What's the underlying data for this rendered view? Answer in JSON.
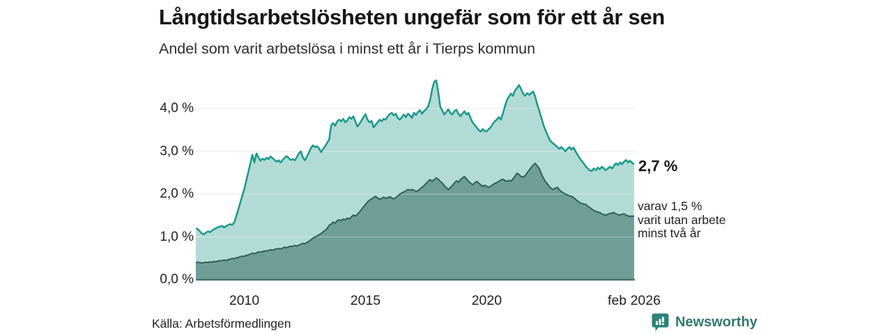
{
  "header": {
    "title": "Långtidsarbetslösheten ungefär som för ett år sen",
    "subtitle": "Andel som varit arbetslösa i minst ett år i Tierps kommun"
  },
  "annotations": {
    "end_value_label": "2,7 %",
    "secondary_lines": [
      "varav 1,5 %",
      "varit utan arbete",
      "minst två år"
    ]
  },
  "source": "Källa: Arbetsförmedlingen",
  "branding": {
    "name": "Newsworthy",
    "icon": "newsworthy-bars-icon",
    "color": "#31796f"
  },
  "colors": {
    "total_line": "#18998b",
    "total_fill": "#b3dbd5",
    "two_year_line": "#2e5f57",
    "two_year_fill": "#6f9e97",
    "gridline": "#e4e4e4",
    "axis_line": "#47776f",
    "text": "#222222"
  },
  "chart_data": {
    "type": "area",
    "title": "Långtidsarbetslösheten ungefär som för ett år sen",
    "subtitle": "Andel som varit arbetslösa i minst ett år i Tierps kommun",
    "x_start": "2008-01",
    "x_end": "2026-02",
    "frequency": "monthly",
    "ylim": [
      0,
      4.78
    ],
    "grid": true,
    "legend_position": "none",
    "y_ticks": [
      {
        "value": 0,
        "label": "0,0 %"
      },
      {
        "value": 1,
        "label": "1,0 %"
      },
      {
        "value": 2,
        "label": "2,0 %"
      },
      {
        "value": 3,
        "label": "3,0 %"
      },
      {
        "value": 4,
        "label": "4,0 %"
      }
    ],
    "x_ticks": [
      {
        "label": "2010",
        "month_index": 24
      },
      {
        "label": "2015",
        "month_index": 84
      },
      {
        "label": "2020",
        "month_index": 144
      },
      {
        "label": "feb 2026",
        "month_index": 217
      }
    ],
    "series": [
      {
        "name": "Andel som varit arbetslösa i minst ett år",
        "end_label": "2,7 %",
        "color": "#18998b",
        "fill": "#b3dbd5",
        "values": [
          1.2,
          1.18,
          1.13,
          1.08,
          1.06,
          1.1,
          1.13,
          1.11,
          1.15,
          1.18,
          1.2,
          1.23,
          1.24,
          1.26,
          1.22,
          1.25,
          1.28,
          1.3,
          1.28,
          1.34,
          1.48,
          1.64,
          1.8,
          1.96,
          2.12,
          2.32,
          2.52,
          2.72,
          2.92,
          2.74,
          2.95,
          2.86,
          2.78,
          2.83,
          2.8,
          2.85,
          2.82,
          2.88,
          2.84,
          2.8,
          2.76,
          2.79,
          2.74,
          2.8,
          2.85,
          2.89,
          2.84,
          2.8,
          2.82,
          2.79,
          2.86,
          2.95,
          3.0,
          2.86,
          2.79,
          2.88,
          2.97,
          3.08,
          3.14,
          3.1,
          3.12,
          3.07,
          2.98,
          3.05,
          3.12,
          3.2,
          3.27,
          3.6,
          3.66,
          3.6,
          3.7,
          3.74,
          3.7,
          3.76,
          3.68,
          3.72,
          3.8,
          3.76,
          3.82,
          3.7,
          3.58,
          3.64,
          3.72,
          3.8,
          3.87,
          3.74,
          3.68,
          3.71,
          3.56,
          3.62,
          3.68,
          3.74,
          3.7,
          3.76,
          3.74,
          3.82,
          3.87,
          3.9,
          3.84,
          3.88,
          3.78,
          3.74,
          3.8,
          3.86,
          3.8,
          3.88,
          3.84,
          3.78,
          3.9,
          3.85,
          3.92,
          3.96,
          3.88,
          3.94,
          3.98,
          4.05,
          4.2,
          4.45,
          4.62,
          4.66,
          4.4,
          4.05,
          3.96,
          3.86,
          3.92,
          3.98,
          3.9,
          3.86,
          3.94,
          3.97,
          3.88,
          3.82,
          3.88,
          3.94,
          3.86,
          3.9,
          3.78,
          3.68,
          3.62,
          3.56,
          3.5,
          3.46,
          3.52,
          3.47,
          3.47,
          3.52,
          3.56,
          3.64,
          3.7,
          3.74,
          3.8,
          3.74,
          3.88,
          4.05,
          4.2,
          4.28,
          4.35,
          4.3,
          4.42,
          4.48,
          4.55,
          4.46,
          4.35,
          4.3,
          4.36,
          4.32,
          4.36,
          4.4,
          4.28,
          4.1,
          3.95,
          3.8,
          3.63,
          3.5,
          3.4,
          3.28,
          3.22,
          3.18,
          3.14,
          3.1,
          3.06,
          3.1,
          3.05,
          3.0,
          3.06,
          3.1,
          3.04,
          3.09,
          3.0,
          2.92,
          2.84,
          2.78,
          2.72,
          2.65,
          2.6,
          2.56,
          2.54,
          2.6,
          2.56,
          2.62,
          2.58,
          2.64,
          2.6,
          2.56,
          2.6,
          2.64,
          2.6,
          2.66,
          2.72,
          2.68,
          2.74,
          2.7,
          2.76,
          2.8,
          2.74,
          2.78,
          2.73,
          2.7
        ]
      },
      {
        "name": "varav varit utan arbete minst två år",
        "end_label": "varav 1,5 % varit utan arbete minst två år",
        "color": "#2e5f57",
        "fill": "#6f9e97",
        "values": [
          0.4,
          0.41,
          0.4,
          0.39,
          0.4,
          0.41,
          0.4,
          0.42,
          0.41,
          0.43,
          0.42,
          0.44,
          0.44,
          0.45,
          0.46,
          0.45,
          0.47,
          0.48,
          0.5,
          0.49,
          0.51,
          0.52,
          0.54,
          0.55,
          0.55,
          0.57,
          0.58,
          0.6,
          0.62,
          0.61,
          0.63,
          0.65,
          0.64,
          0.66,
          0.67,
          0.68,
          0.68,
          0.7,
          0.69,
          0.71,
          0.72,
          0.73,
          0.72,
          0.74,
          0.76,
          0.75,
          0.77,
          0.78,
          0.78,
          0.8,
          0.79,
          0.81,
          0.83,
          0.85,
          0.84,
          0.87,
          0.9,
          0.93,
          0.97,
          1.0,
          1.02,
          1.05,
          1.08,
          1.12,
          1.15,
          1.2,
          1.27,
          1.3,
          1.35,
          1.32,
          1.38,
          1.4,
          1.38,
          1.42,
          1.4,
          1.44,
          1.42,
          1.47,
          1.51,
          1.49,
          1.53,
          1.58,
          1.64,
          1.7,
          1.76,
          1.82,
          1.86,
          1.89,
          1.92,
          1.95,
          1.91,
          1.88,
          1.9,
          1.93,
          1.9,
          1.92,
          1.94,
          1.91,
          1.89,
          1.92,
          1.96,
          2.0,
          2.03,
          2.05,
          2.08,
          2.11,
          2.09,
          2.11,
          2.09,
          2.07,
          2.08,
          2.12,
          2.16,
          2.2,
          2.25,
          2.3,
          2.34,
          2.3,
          2.34,
          2.38,
          2.35,
          2.3,
          2.26,
          2.2,
          2.15,
          2.11,
          2.15,
          2.2,
          2.26,
          2.31,
          2.28,
          2.34,
          2.38,
          2.41,
          2.36,
          2.3,
          2.26,
          2.22,
          2.26,
          2.3,
          2.26,
          2.22,
          2.18,
          2.21,
          2.18,
          2.16,
          2.19,
          2.22,
          2.25,
          2.27,
          2.3,
          2.33,
          2.35,
          2.32,
          2.3,
          2.32,
          2.3,
          2.36,
          2.42,
          2.49,
          2.46,
          2.41,
          2.4,
          2.43,
          2.5,
          2.56,
          2.62,
          2.68,
          2.72,
          2.66,
          2.6,
          2.48,
          2.38,
          2.3,
          2.24,
          2.18,
          2.13,
          2.11,
          2.14,
          2.16,
          2.1,
          2.06,
          2.03,
          2.0,
          1.98,
          1.96,
          1.95,
          1.92,
          1.88,
          1.84,
          1.81,
          1.78,
          1.77,
          1.76,
          1.72,
          1.69,
          1.65,
          1.62,
          1.6,
          1.58,
          1.57,
          1.54,
          1.52,
          1.51,
          1.53,
          1.55,
          1.56,
          1.57,
          1.54,
          1.52,
          1.51,
          1.53,
          1.54,
          1.51,
          1.49,
          1.48,
          1.49,
          1.48
        ]
      }
    ]
  }
}
